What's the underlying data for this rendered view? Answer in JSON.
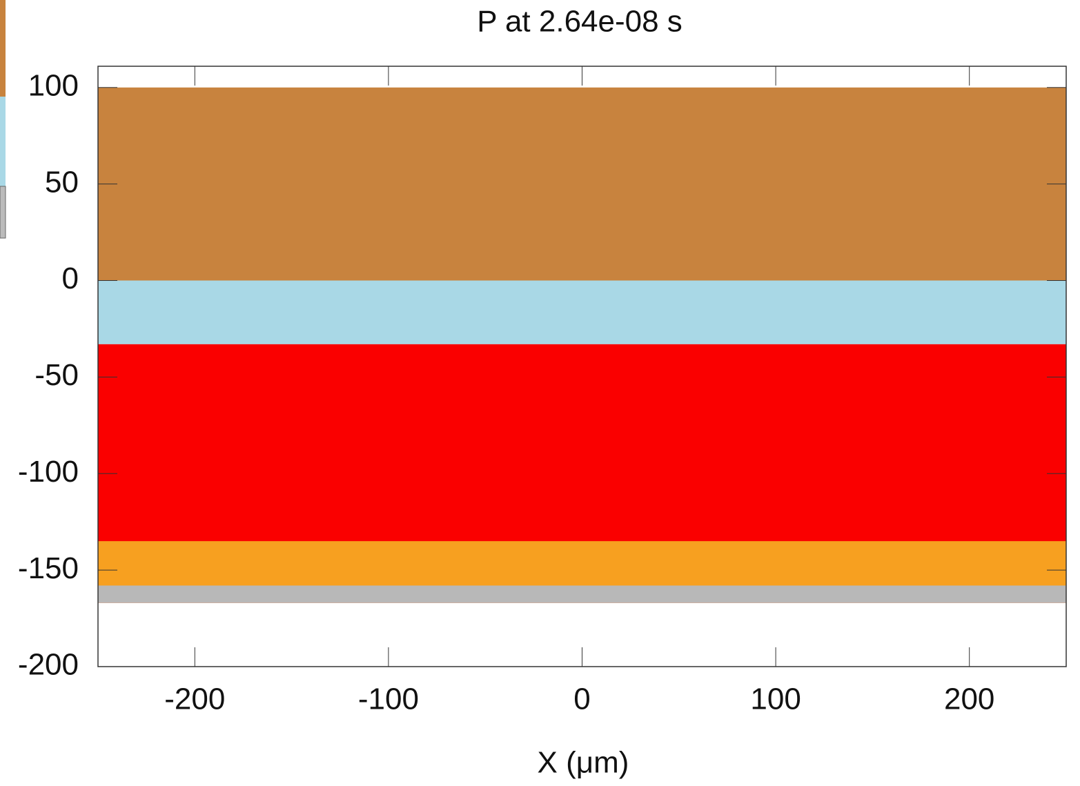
{
  "chart_data": {
    "type": "bands",
    "title": "P at 2.64e-08 s",
    "xlabel": "X (μm)",
    "xlim": [
      -250,
      250
    ],
    "ylim": [
      -200,
      111
    ],
    "xticks": [
      -200,
      -100,
      0,
      100,
      200
    ],
    "yticks": [
      100,
      50,
      0,
      -50,
      -100,
      -150,
      -200
    ],
    "regions": [
      {
        "ylim": [
          0,
          100
        ],
        "color": "#c8833e"
      },
      {
        "ylim": [
          -33,
          0
        ],
        "color": "#a9d8e6"
      },
      {
        "ylim": [
          -167,
          -33
        ],
        "color": "#fa0000"
      },
      {
        "ylim": [
          -167,
          -135
        ],
        "color": "#f7a020"
      },
      {
        "ylim": [
          -167,
          -158
        ],
        "color": "#b8b8b8"
      }
    ]
  }
}
